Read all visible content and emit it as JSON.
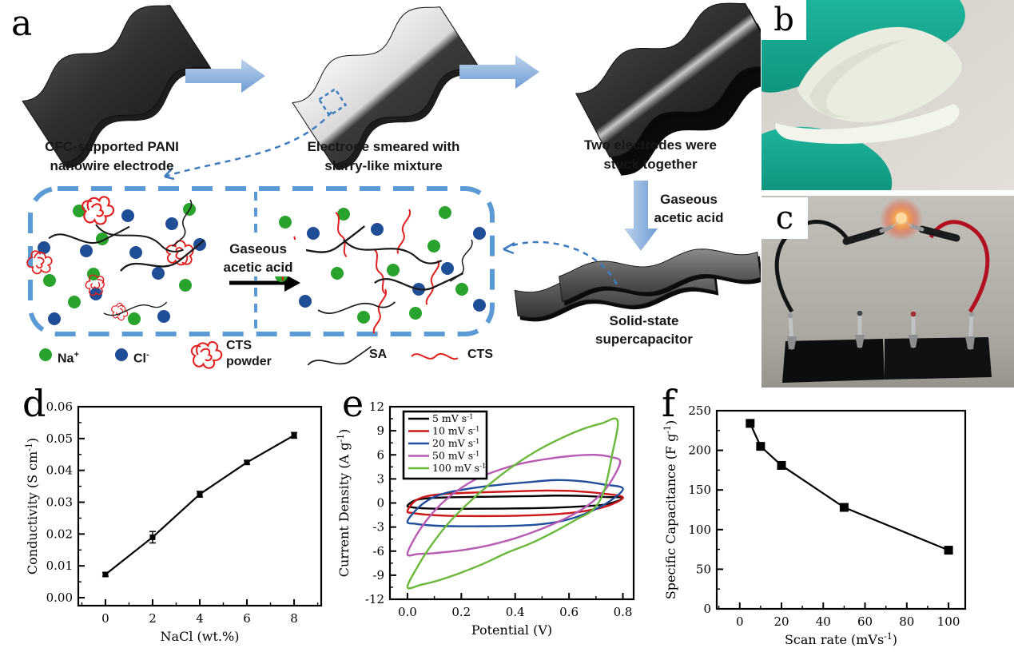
{
  "a": {
    "letter": "a",
    "step1": {
      "line1": "CFC-supported PANI",
      "line2": "nanowire electrode"
    },
    "step2": {
      "line1": "Electrode smeared with",
      "line2": "slurry-like mixture"
    },
    "step3": {
      "line1": "Two electrodes were",
      "line2": "stuck together"
    },
    "gas_arrow_right": {
      "line1": "Gaseous",
      "line2": "acetic acid"
    },
    "gas_arrow_box": {
      "line1": "Gaseous",
      "line2": "acetic acid"
    },
    "supercap": {
      "line1": "Solid-state",
      "line2": "supercapacitor"
    },
    "legend": {
      "na_base": "Na",
      "na_sup": "+",
      "cl_base": "Cl",
      "cl_sup": "-",
      "cts_powder_line1": "CTS",
      "cts_powder_line2": "powder",
      "sa": "SA",
      "cts": "CTS"
    },
    "colors": {
      "accent_blue": "#5b9bd5",
      "na_green": "#2aa32c",
      "cl_blue": "#1f4e96",
      "cts_red": "#e01f1f",
      "sa_black": "#1a1a1a"
    }
  },
  "b": {
    "letter": "b",
    "glove_color": "#17a993"
  },
  "c": {
    "letter": "c"
  },
  "d_letter": "d",
  "e_letter": "e",
  "f_letter": "f",
  "chart_data": [
    {
      "id": "d",
      "type": "line",
      "title": "",
      "xlabel_parts": [
        [
          "t",
          "NaCl (wt.%)"
        ]
      ],
      "ylabel_parts": [
        [
          "t",
          "Conductivity (S cm"
        ],
        [
          "s",
          "-1"
        ],
        [
          "t",
          ")"
        ]
      ],
      "x": [
        0,
        2,
        4,
        6,
        8
      ],
      "y": [
        0.0073,
        0.019,
        0.0325,
        0.0425,
        0.051
      ],
      "yerr": [
        0.0006,
        0.0018,
        0.0009,
        0.0006,
        0.0009
      ],
      "xlim": [
        -1.15,
        9.15
      ],
      "ylim": [
        -0.0025,
        0.06
      ],
      "xticks": [
        0,
        2,
        4,
        6,
        8
      ],
      "xtick_labels": [
        "0",
        "2",
        "4",
        "6",
        "8"
      ],
      "yticks": [
        0,
        0.01,
        0.02,
        0.03,
        0.04,
        0.05,
        0.06
      ],
      "ytick_labels": [
        "0.00",
        "0.01",
        "0.02",
        "0.03",
        "0.04",
        "0.05",
        "0.06"
      ],
      "xminor": 1,
      "yminor": 0.005,
      "color": "#000000",
      "marker": "square",
      "grid": false,
      "legend_position": "none"
    },
    {
      "id": "e",
      "type": "cv",
      "title": "",
      "xlabel_parts": [
        [
          "t",
          "Potential (V)"
        ]
      ],
      "ylabel_parts": [
        [
          "t",
          "Current Density (A g"
        ],
        [
          "s",
          "-1"
        ],
        [
          "t",
          ")"
        ]
      ],
      "xlim": [
        -0.065,
        0.84
      ],
      "ylim": [
        -12,
        12
      ],
      "xticks": [
        0,
        0.2,
        0.4,
        0.6,
        0.8
      ],
      "xtick_labels": [
        "0.0",
        "0.2",
        "0.4",
        "0.6",
        "0.8"
      ],
      "yticks": [
        -12,
        -9,
        -6,
        -3,
        0,
        3,
        6,
        9,
        12
      ],
      "ytick_labels": [
        "-12",
        "-9",
        "-6",
        "-3",
        "0",
        "3",
        "6",
        "9",
        "12"
      ],
      "xminor": 0.1,
      "yminor": 1.5,
      "grid": false,
      "legend_position": "top-left",
      "series": [
        {
          "label_base": "5 mV s",
          "label_sup": "-1",
          "color": "#000000",
          "points": [
            [
              0.0,
              -0.35
            ],
            [
              0.03,
              0.35
            ],
            [
              0.08,
              0.6
            ],
            [
              0.15,
              0.7
            ],
            [
              0.25,
              0.76
            ],
            [
              0.35,
              0.8
            ],
            [
              0.45,
              0.85
            ],
            [
              0.55,
              0.92
            ],
            [
              0.65,
              0.88
            ],
            [
              0.73,
              0.75
            ],
            [
              0.8,
              0.62
            ],
            [
              0.74,
              -0.15
            ],
            [
              0.65,
              -0.42
            ],
            [
              0.55,
              -0.58
            ],
            [
              0.45,
              -0.66
            ],
            [
              0.35,
              -0.7
            ],
            [
              0.25,
              -0.72
            ],
            [
              0.15,
              -0.73
            ],
            [
              0.07,
              -0.68
            ],
            [
              0.02,
              -0.55
            ]
          ]
        },
        {
          "label_base": "10 mV s",
          "label_sup": "-1",
          "color": "#cc1717",
          "points": [
            [
              0.0,
              -1.0
            ],
            [
              0.03,
              0.3
            ],
            [
              0.08,
              0.9
            ],
            [
              0.15,
              1.15
            ],
            [
              0.25,
              1.3
            ],
            [
              0.35,
              1.4
            ],
            [
              0.45,
              1.5
            ],
            [
              0.52,
              1.55
            ],
            [
              0.62,
              1.48
            ],
            [
              0.72,
              1.2
            ],
            [
              0.8,
              0.7
            ],
            [
              0.74,
              -0.4
            ],
            [
              0.65,
              -1.05
            ],
            [
              0.55,
              -1.4
            ],
            [
              0.45,
              -1.55
            ],
            [
              0.35,
              -1.62
            ],
            [
              0.25,
              -1.63
            ],
            [
              0.15,
              -1.6
            ],
            [
              0.07,
              -1.45
            ],
            [
              0.02,
              -1.25
            ]
          ]
        },
        {
          "label_base": "20 mV s",
          "label_sup": "-1",
          "color": "#1f4e9c",
          "points": [
            [
              0.0,
              -2.3
            ],
            [
              0.04,
              -0.6
            ],
            [
              0.09,
              0.6
            ],
            [
              0.15,
              1.3
            ],
            [
              0.25,
              1.9
            ],
            [
              0.35,
              2.3
            ],
            [
              0.45,
              2.6
            ],
            [
              0.55,
              2.85
            ],
            [
              0.65,
              2.7
            ],
            [
              0.73,
              2.3
            ],
            [
              0.8,
              1.8
            ],
            [
              0.75,
              0.2
            ],
            [
              0.67,
              -1.2
            ],
            [
              0.58,
              -2.2
            ],
            [
              0.48,
              -2.7
            ],
            [
              0.38,
              -2.85
            ],
            [
              0.28,
              -2.9
            ],
            [
              0.18,
              -2.9
            ],
            [
              0.09,
              -2.8
            ],
            [
              0.03,
              -2.6
            ]
          ]
        },
        {
          "label_base": "50 mV s",
          "label_sup": "-1",
          "color": "#b75bb3",
          "points": [
            [
              0.0,
              -6.4
            ],
            [
              0.03,
              -4.2
            ],
            [
              0.07,
              -2.2
            ],
            [
              0.12,
              -0.3
            ],
            [
              0.18,
              1.4
            ],
            [
              0.25,
              2.9
            ],
            [
              0.33,
              4.0
            ],
            [
              0.42,
              4.9
            ],
            [
              0.52,
              5.5
            ],
            [
              0.62,
              5.9
            ],
            [
              0.7,
              6.0
            ],
            [
              0.76,
              5.7
            ],
            [
              0.79,
              5.2
            ],
            [
              0.77,
              3.5
            ],
            [
              0.73,
              1.5
            ],
            [
              0.67,
              -0.3
            ],
            [
              0.6,
              -1.7
            ],
            [
              0.5,
              -3.2
            ],
            [
              0.4,
              -4.4
            ],
            [
              0.3,
              -5.3
            ],
            [
              0.2,
              -5.9
            ],
            [
              0.1,
              -6.25
            ],
            [
              0.04,
              -6.35
            ]
          ]
        },
        {
          "label_base": "100 mV s",
          "label_sup": "-1",
          "color": "#69b93a",
          "points": [
            [
              0.0,
              -10.5
            ],
            [
              0.04,
              -7.8
            ],
            [
              0.09,
              -5.2
            ],
            [
              0.15,
              -2.6
            ],
            [
              0.22,
              -0.2
            ],
            [
              0.3,
              2.2
            ],
            [
              0.38,
              4.3
            ],
            [
              0.47,
              6.3
            ],
            [
              0.56,
              7.9
            ],
            [
              0.65,
              9.2
            ],
            [
              0.72,
              9.9
            ],
            [
              0.78,
              10.3
            ],
            [
              0.76,
              6.0
            ],
            [
              0.73,
              1.5
            ],
            [
              0.69,
              -0.8
            ],
            [
              0.63,
              -2.0
            ],
            [
              0.55,
              -3.5
            ],
            [
              0.46,
              -5.0
            ],
            [
              0.37,
              -6.2
            ],
            [
              0.28,
              -7.6
            ],
            [
              0.19,
              -8.8
            ],
            [
              0.11,
              -9.7
            ],
            [
              0.05,
              -10.2
            ]
          ]
        }
      ]
    },
    {
      "id": "f",
      "type": "line",
      "title": "",
      "xlabel_parts": [
        [
          "t",
          "Scan rate (mVs"
        ],
        [
          "s",
          "-1"
        ],
        [
          "t",
          ")"
        ]
      ],
      "ylabel_parts": [
        [
          "t",
          "Specific Capacitance (F g"
        ],
        [
          "s",
          "-1"
        ],
        [
          "t",
          ")"
        ]
      ],
      "x": [
        5,
        10,
        20,
        50,
        100
      ],
      "y": [
        234,
        205,
        181,
        128,
        74
      ],
      "yerr": null,
      "xlim": [
        -11,
        108
      ],
      "ylim": [
        0,
        250
      ],
      "xticks": [
        0,
        20,
        40,
        60,
        80,
        100
      ],
      "xtick_labels": [
        "0",
        "20",
        "40",
        "60",
        "80",
        "100"
      ],
      "yticks": [
        0,
        50,
        100,
        150,
        200,
        250
      ],
      "ytick_labels": [
        "0",
        "50",
        "100",
        "150",
        "200",
        "250"
      ],
      "xminor": 10,
      "yminor": 25,
      "color": "#000000",
      "marker": "square",
      "grid": false,
      "legend_position": "none"
    }
  ]
}
